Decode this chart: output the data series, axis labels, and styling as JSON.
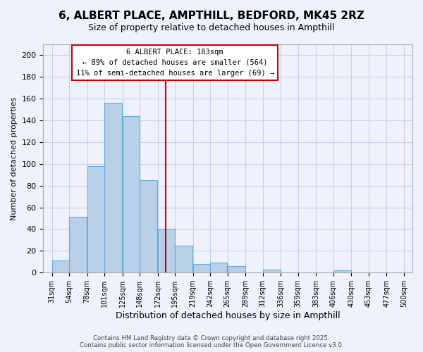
{
  "title": "6, ALBERT PLACE, AMPTHILL, BEDFORD, MK45 2RZ",
  "subtitle": "Size of property relative to detached houses in Ampthill",
  "xlabel": "Distribution of detached houses by size in Ampthill",
  "ylabel": "Number of detached properties",
  "bar_heights": [
    11,
    51,
    98,
    156,
    144,
    85,
    40,
    25,
    8,
    9,
    6,
    0,
    3,
    0,
    0,
    0,
    2,
    0,
    0,
    0,
    0
  ],
  "bin_edges": [
    31,
    54,
    78,
    101,
    125,
    148,
    172,
    195,
    219,
    242,
    265,
    289,
    312,
    336,
    359,
    383,
    406,
    430,
    453,
    477,
    500
  ],
  "bin_labels": [
    "31sqm",
    "54sqm",
    "78sqm",
    "101sqm",
    "125sqm",
    "148sqm",
    "172sqm",
    "195sqm",
    "219sqm",
    "242sqm",
    "265sqm",
    "289sqm",
    "312sqm",
    "336sqm",
    "359sqm",
    "383sqm",
    "406sqm",
    "430sqm",
    "453sqm",
    "477sqm",
    "500sqm"
  ],
  "bar_color": "#b8d0e8",
  "bar_edgecolor": "#6aabdc",
  "vline_x": 183,
  "vline_color": "#cc0000",
  "ylim": [
    0,
    210
  ],
  "yticks": [
    0,
    20,
    40,
    60,
    80,
    100,
    120,
    140,
    160,
    180,
    200
  ],
  "annotation_title": "6 ALBERT PLACE: 183sqm",
  "annotation_line1": "← 89% of detached houses are smaller (564)",
  "annotation_line2": "11% of semi-detached houses are larger (69) →",
  "annotation_box_color": "#ffffff",
  "annotation_box_edge": "#cc0000",
  "footer1": "Contains HM Land Registry data © Crown copyright and database right 2025.",
  "footer2": "Contains public sector information licensed under the Open Government Licence v3.0.",
  "bg_color": "#eef2fc",
  "grid_color": "#c8d0e8"
}
